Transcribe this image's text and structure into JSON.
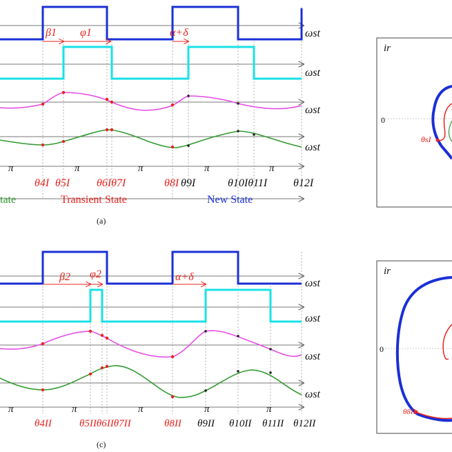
{
  "colors": {
    "blue": "#1a2fd6",
    "cyan": "#19e0e6",
    "magenta": "#e64be6",
    "green": "#2f9a2f",
    "red": "#e8231e",
    "black": "#111111"
  },
  "common": {
    "axis_label": "ωst",
    "pi": "π",
    "ir": "ir",
    "zero": "0"
  },
  "panel_a": {
    "caption": "(a)",
    "beta": "β1",
    "phi": "φ1",
    "alpha_delta": "α+δ",
    "thetas": [
      "θ4I",
      "θ5I",
      "θ6Iθ7I",
      "θ8I",
      "θ9I",
      "θ10Iθ11I",
      "θ12I"
    ],
    "states": {
      "left": "tate",
      "transient": "Transient State",
      "new": "New State"
    },
    "phase_label": "θ6I",
    "small_label": "θsI"
  },
  "panel_c": {
    "caption": "(c)",
    "beta": "β2",
    "phi": "φ2",
    "alpha_delta": "α+δ",
    "thetas": [
      "θ4II",
      "θ5IIθ6IIθ7II",
      "θ8II",
      "θ9II",
      "θ10II",
      "θ11II",
      "θ12II"
    ],
    "phase_label": "θ6II",
    "small_label": "θ8II"
  }
}
